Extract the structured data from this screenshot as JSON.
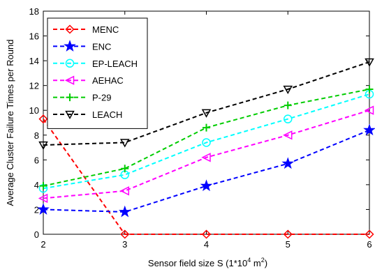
{
  "chart_data": {
    "type": "line",
    "title": "",
    "xlabel": "Sensor field size S (1*10",
    "xlabel_sup": "4",
    "xlabel_unit": " m",
    "xlabel_unit_sup": "2",
    "xlabel_close": ")",
    "ylabel": "Average Cluster Failure Times per Round",
    "x": [
      2,
      3,
      4,
      5,
      6
    ],
    "xlim": [
      2,
      6
    ],
    "ylim": [
      0,
      18
    ],
    "xticks": [
      2,
      3,
      4,
      5,
      6
    ],
    "yticks": [
      0,
      2,
      4,
      6,
      8,
      10,
      12,
      14,
      16,
      18
    ],
    "grid": false,
    "legend_position": "top-left",
    "series": [
      {
        "name": "MENC",
        "values": [
          9.3,
          0,
          0,
          0,
          0
        ],
        "color": "#ff0000",
        "marker": "diamond"
      },
      {
        "name": "ENC",
        "values": [
          2.0,
          1.8,
          3.9,
          5.7,
          8.4
        ],
        "color": "#0000ff",
        "marker": "star"
      },
      {
        "name": "EP-LEACH",
        "values": [
          3.7,
          4.8,
          7.4,
          9.3,
          11.3
        ],
        "color": "#00ffff",
        "marker": "circle"
      },
      {
        "name": "AEHAC",
        "values": [
          2.9,
          3.5,
          6.2,
          8.0,
          10.0
        ],
        "color": "#ff00ff",
        "marker": "triangle-left"
      },
      {
        "name": "P-29",
        "values": [
          3.9,
          5.3,
          8.6,
          10.4,
          11.7
        ],
        "color": "#00cc00",
        "marker": "plus"
      },
      {
        "name": "LEACH",
        "values": [
          7.2,
          7.4,
          9.8,
          11.7,
          13.9
        ],
        "color": "#000000",
        "marker": "triangle-down"
      }
    ]
  }
}
